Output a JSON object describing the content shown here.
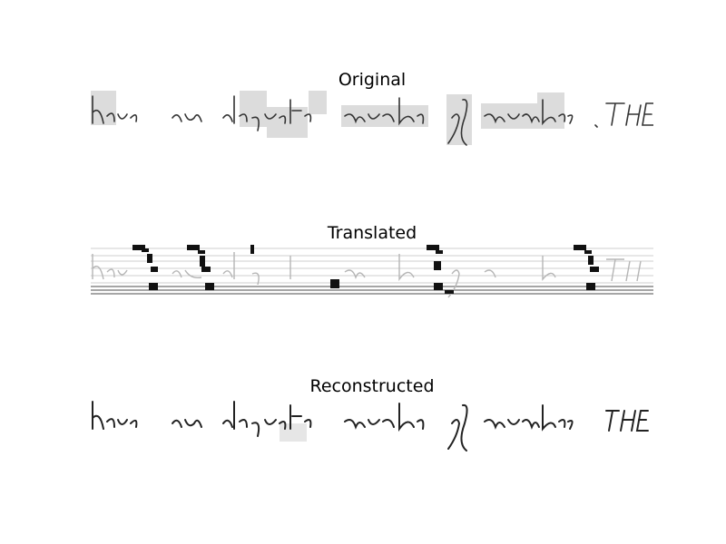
{
  "panels": [
    {
      "title": "Original"
    },
    {
      "title": "Translated"
    },
    {
      "title": "Reconstructed"
    }
  ],
  "handwriting_text": "have an adequate numbe of members . THE"
}
